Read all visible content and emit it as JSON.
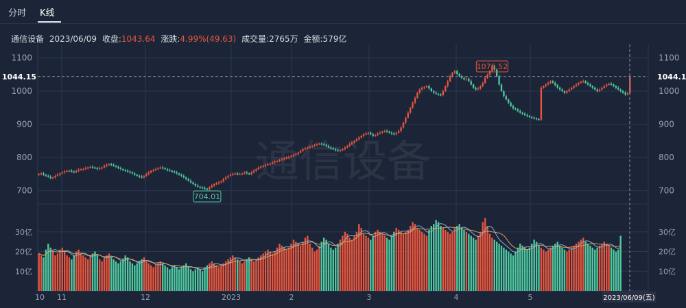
{
  "tabs": [
    {
      "label": "分时"
    },
    {
      "label": "K线"
    }
  ],
  "info": {
    "name": "通信设备",
    "date": "2023/06/09",
    "close_label": "收盘:",
    "close_value": "1043.64",
    "change_label": "涨跌:",
    "change_value": "4.99%(49.63)",
    "volume_label": "成交量:",
    "volume_value": "2765万",
    "amount_label": "金额:",
    "amount_value": "579亿"
  },
  "watermark": "通信设备",
  "colors": {
    "up": "#e8553c",
    "down": "#4ec9a0",
    "grid": "#2c3650",
    "ma1": "#7fb0e0",
    "ma2": "#d9a25a"
  },
  "chart_data": {
    "type": "candlestick",
    "title": "",
    "price_axis": {
      "ticks": [
        700,
        800,
        900,
        1000,
        1100
      ],
      "range": [
        660,
        1120
      ]
    },
    "volume_axis": {
      "tick_labels": [
        "10亿",
        "20亿",
        "30亿"
      ],
      "tick_values": [
        10,
        20,
        30
      ],
      "range": [
        0,
        40
      ],
      "unit": "亿"
    },
    "x_labels": [
      "10",
      "11",
      "12",
      "2023",
      "2",
      "3",
      "4",
      "5",
      "2023/06/09(五)"
    ],
    "crosshair_price": "1044.15",
    "high_label": "1076.52",
    "low_label": "704.01",
    "close_series": [
      750,
      752,
      748,
      745,
      742,
      738,
      740,
      745,
      748,
      752,
      755,
      758,
      760,
      760,
      758,
      756,
      760,
      763,
      765,
      765,
      768,
      770,
      772,
      770,
      768,
      765,
      768,
      770,
      775,
      778,
      780,
      778,
      775,
      772,
      768,
      765,
      762,
      760,
      758,
      755,
      752,
      748,
      745,
      742,
      740,
      745,
      750,
      755,
      760,
      762,
      765,
      768,
      770,
      768,
      765,
      762,
      760,
      758,
      755,
      752,
      748,
      745,
      740,
      735,
      730,
      725,
      720,
      715,
      712,
      710,
      708,
      706,
      704,
      710,
      715,
      720,
      722,
      725,
      728,
      735,
      740,
      745,
      748,
      750,
      752,
      750,
      750,
      752,
      755,
      752,
      750,
      755,
      760,
      765,
      770,
      772,
      775,
      778,
      780,
      782,
      785,
      788,
      790,
      792,
      795,
      798,
      800,
      802,
      805,
      808,
      810,
      815,
      820,
      825,
      828,
      830,
      832,
      835,
      838,
      840,
      842,
      840,
      838,
      835,
      830,
      828,
      825,
      822,
      820,
      822,
      825,
      830,
      835,
      840,
      845,
      850,
      855,
      860,
      865,
      870,
      872,
      875,
      870,
      865,
      868,
      872,
      875,
      878,
      880,
      878,
      875,
      872,
      870,
      875,
      880,
      890,
      905,
      920,
      935,
      950,
      965,
      980,
      995,
      1005,
      1010,
      1012,
      1015,
      1008,
      1000,
      995,
      992,
      990,
      988,
      1000,
      1015,
      1030,
      1045,
      1055,
      1060,
      1052,
      1045,
      1040,
      1035,
      1038,
      1030,
      1020,
      1010,
      1005,
      1008,
      1015,
      1025,
      1040,
      1050,
      1060,
      1076,
      1065,
      1045,
      1020,
      1000,
      985,
      975,
      965,
      955,
      948,
      945,
      940,
      935,
      932,
      928,
      925,
      922,
      920,
      918,
      916,
      914,
      1010,
      1015,
      1020,
      1025,
      1030,
      1025,
      1018,
      1010,
      1005,
      1000,
      995,
      1000,
      1005,
      1010,
      1015,
      1020,
      1025,
      1028,
      1030,
      1025,
      1020,
      1015,
      1010,
      1005,
      1000,
      1005,
      1010,
      1015,
      1020,
      1022,
      1020,
      1015,
      1010,
      1005,
      1000,
      995,
      990,
      994,
      1043
    ],
    "volume_series": [
      19,
      18,
      17,
      21,
      24,
      22,
      20,
      18,
      19,
      21,
      22,
      20,
      18,
      17,
      16,
      18,
      20,
      21,
      19,
      18,
      17,
      16,
      18,
      19,
      20,
      18,
      16,
      15,
      17,
      18,
      19,
      17,
      16,
      15,
      14,
      15,
      16,
      18,
      17,
      15,
      14,
      13,
      14,
      15,
      16,
      17,
      15,
      14,
      13,
      12,
      13,
      14,
      15,
      14,
      13,
      12,
      11,
      12,
      13,
      12,
      11,
      12,
      13,
      14,
      12,
      11,
      10,
      11,
      12,
      11,
      10,
      12,
      13,
      14,
      15,
      14,
      13,
      12,
      13,
      14,
      15,
      16,
      17,
      18,
      17,
      16,
      15,
      14,
      15,
      16,
      17,
      16,
      15,
      16,
      17,
      18,
      19,
      20,
      21,
      20,
      19,
      20,
      22,
      24,
      23,
      22,
      21,
      22,
      24,
      26,
      25,
      24,
      23,
      25,
      27,
      28,
      24,
      22,
      20,
      21,
      23,
      25,
      27,
      26,
      24,
      22,
      21,
      22,
      24,
      26,
      28,
      30,
      29,
      27,
      26,
      28,
      30,
      34,
      32,
      29,
      28,
      27,
      26,
      28,
      30,
      31,
      30,
      29,
      28,
      27,
      26,
      28,
      30,
      32,
      31,
      30,
      29,
      30,
      31,
      33,
      35,
      34,
      32,
      31,
      30,
      29,
      28,
      31,
      33,
      34,
      36,
      35,
      33,
      32,
      31,
      30,
      29,
      30,
      32,
      33,
      34,
      32,
      31,
      30,
      29,
      28,
      27,
      26,
      28,
      30,
      35,
      37,
      33,
      29,
      27,
      26,
      25,
      24,
      23,
      22,
      21,
      20,
      19,
      18,
      20,
      22,
      24,
      23,
      22,
      21,
      22,
      24,
      26,
      25,
      23,
      22,
      21,
      20,
      21,
      22,
      23,
      24,
      25,
      23,
      22,
      21,
      20,
      21,
      22,
      23,
      24,
      25,
      26,
      27,
      25,
      24,
      23,
      22,
      21,
      22,
      23,
      24,
      25,
      24,
      23,
      22,
      21,
      20,
      21,
      28
    ],
    "ma_vol_5": "moving average of volume_series over 5",
    "ma_vol_10": "moving average of volume_series over 10"
  }
}
